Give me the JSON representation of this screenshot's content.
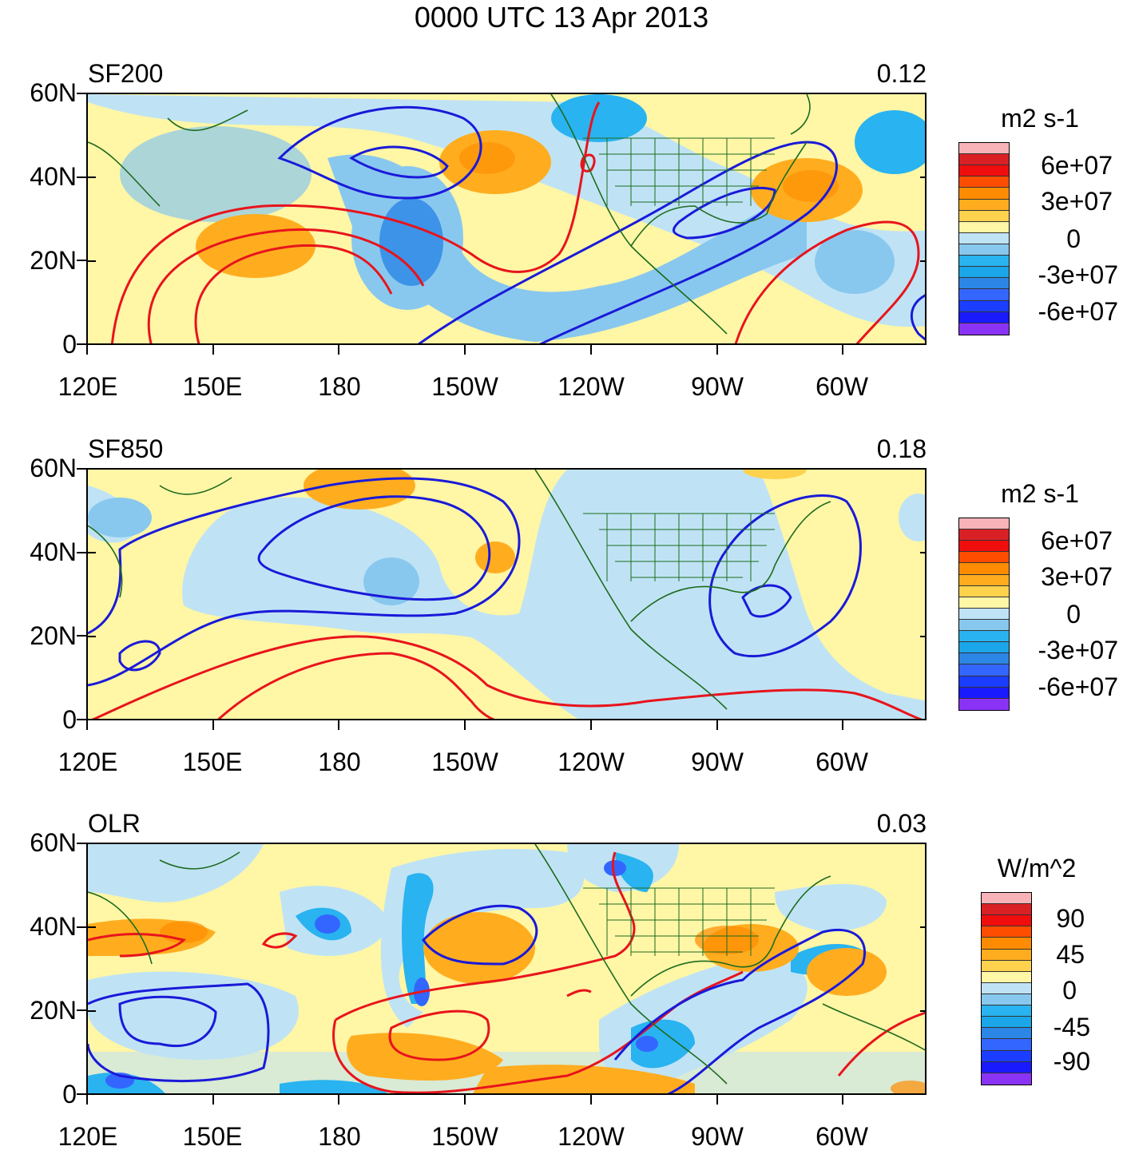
{
  "title": "0000 UTC 13 Apr 2013",
  "axes": {
    "lat_labels": [
      "60N",
      "40N",
      "20N",
      "0"
    ],
    "lon_labels": [
      "120E",
      "150E",
      "180",
      "150W",
      "120W",
      "90W",
      "60W"
    ]
  },
  "panels": [
    {
      "label": "SF200",
      "value": "0.12",
      "legend": {
        "unit": "m2 s-1",
        "labels": [
          "6e+07",
          "3e+07",
          "0",
          "-3e+07",
          "-6e+07"
        ],
        "colors": [
          "#f7b3b8",
          "#d92025",
          "#f00d0d",
          "#ff4d00",
          "#ff8c00",
          "#ffad1f",
          "#ffd24d",
          "#fff6a6",
          "#bfe3f5",
          "#89c8ee",
          "#29b3f0",
          "#1aa6e8",
          "#2b86e6",
          "#3366ff",
          "#1a3dff",
          "#1a1aff",
          "#8a33f5"
        ]
      }
    },
    {
      "label": "SF850",
      "value": "0.18",
      "legend": {
        "unit": "m2 s-1",
        "labels": [
          "6e+07",
          "3e+07",
          "0",
          "-3e+07",
          "-6e+07"
        ],
        "colors": [
          "#f7b3b8",
          "#d92025",
          "#f00d0d",
          "#ff4d00",
          "#ff8c00",
          "#ffad1f",
          "#ffd24d",
          "#fff6a6",
          "#bfe3f5",
          "#89c8ee",
          "#29b3f0",
          "#1aa6e8",
          "#2b86e6",
          "#3366ff",
          "#1a3dff",
          "#1a1aff",
          "#8a33f5"
        ]
      }
    },
    {
      "label": "OLR",
      "value": "0.03",
      "legend": {
        "unit": "W/m^2",
        "labels": [
          "90",
          "45",
          "0",
          "-45",
          "-90"
        ],
        "colors": [
          "#f7b3b8",
          "#d92025",
          "#f00d0d",
          "#ff4d00",
          "#ff8c00",
          "#ffad1f",
          "#ffd24d",
          "#fff6a6",
          "#bfe3f5",
          "#89c8ee",
          "#29b3f0",
          "#1aa6e8",
          "#2b86e6",
          "#3366ff",
          "#1a3dff",
          "#1a1aff",
          "#8a33f5"
        ]
      }
    }
  ],
  "colors": {
    "positive_contour": "#e8141c",
    "negative_contour": "#1a1ad9",
    "coastline": "#1e6b1e"
  }
}
